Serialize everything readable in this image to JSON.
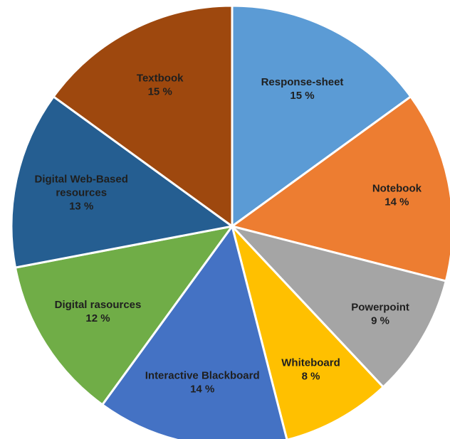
{
  "chart_data": {
    "type": "pie",
    "title": "",
    "slices": [
      {
        "label_lines": [
          "Response-sheet"
        ],
        "value": 15,
        "value_label": "15 %",
        "color": "#5B9BD5",
        "text_color": "#1F1F1F"
      },
      {
        "label_lines": [
          "Notebook"
        ],
        "value": 14,
        "value_label": "14 %",
        "color": "#ED7D31",
        "text_color": "#1F1F1F"
      },
      {
        "label_lines": [
          "Powerpoint"
        ],
        "value": 9,
        "value_label": "9 %",
        "color": "#A5A5A5",
        "text_color": "#1F1F1F"
      },
      {
        "label_lines": [
          "Whiteboard"
        ],
        "value": 8,
        "value_label": "8 %",
        "color": "#FFC000",
        "text_color": "#1F1F1F"
      },
      {
        "label_lines": [
          "Interactive  Blackboard"
        ],
        "value": 14,
        "value_label": "14 %",
        "color": "#4472C4",
        "text_color": "#1F1F1F"
      },
      {
        "label_lines": [
          "Digital rasources"
        ],
        "value": 12,
        "value_label": "12 %",
        "color": "#70AD47",
        "text_color": "#1F1F1F"
      },
      {
        "label_lines": [
          "Digital Web-Based",
          "resources"
        ],
        "value": 13,
        "value_label": "13 %",
        "color": "#255E91",
        "text_color": "#1F1F1F"
      },
      {
        "label_lines": [
          "Textbook"
        ],
        "value": 15,
        "value_label": "15 %",
        "color": "#9E480E",
        "text_color": "#1F1F1F"
      }
    ],
    "start_angle_deg": 0,
    "direction": "clockwise",
    "legend": "none"
  }
}
